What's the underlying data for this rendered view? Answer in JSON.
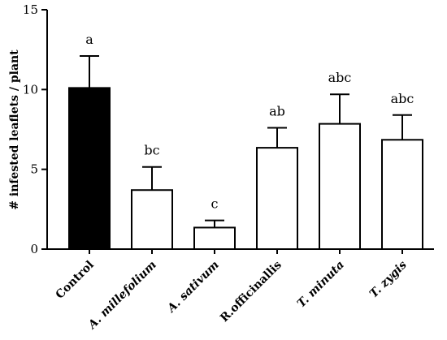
{
  "chart_data": {
    "type": "bar",
    "ylabel": "# infested leaflets / plant",
    "xlabel": "",
    "title": "",
    "ylim": [
      0,
      15
    ],
    "yticks": [
      0,
      5,
      10,
      15
    ],
    "grid": false,
    "categories": [
      "Control",
      "A. millefolium",
      "A. sativum",
      "R.officinallis",
      "T. minuta",
      "T. zygis"
    ],
    "category_italic": [
      false,
      true,
      true,
      false,
      true,
      true
    ],
    "values": [
      10.1,
      3.7,
      1.35,
      6.35,
      7.85,
      6.85
    ],
    "error": [
      2.0,
      1.45,
      0.45,
      1.25,
      1.85,
      1.55
    ],
    "significance_letters": [
      "a",
      "bc",
      "c",
      "ab",
      "abc",
      "abc"
    ],
    "bar_fill": [
      "#000000",
      "#ffffff",
      "#ffffff",
      "#ffffff",
      "#ffffff",
      "#ffffff"
    ],
    "bar_stroke": "#000000"
  }
}
